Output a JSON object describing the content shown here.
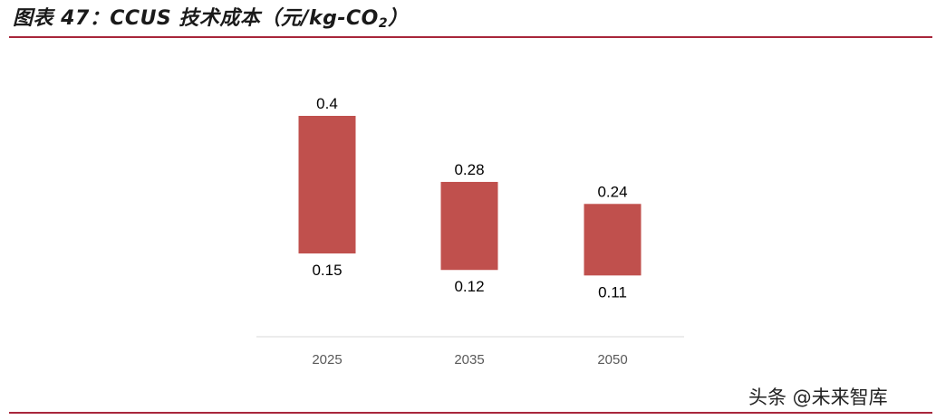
{
  "title": {
    "prefix": "图表 47：CCUS 技术成本（元/kg-CO",
    "subscript": "2",
    "suffix": "）"
  },
  "watermark": "头条 @未来智库",
  "colors": {
    "bar": "#c0504d",
    "rule": "#a8263b",
    "axis": "#d9d9d9",
    "tick_label": "#595959",
    "data_label": "#000000"
  },
  "chart_data": {
    "type": "bar",
    "subtype": "floating-range",
    "title": "CCUS 技术成本（元/kg-CO2）",
    "categories": [
      "2025",
      "2035",
      "2050"
    ],
    "series": [
      {
        "low": [
          0.15,
          0.12,
          0.11
        ],
        "high": [
          0.4,
          0.28,
          0.24
        ]
      }
    ],
    "data_labels": {
      "high": [
        "0.4",
        "0.28",
        "0.24"
      ],
      "low": [
        "0.15",
        "0.12",
        "0.11"
      ]
    },
    "xlabel": "",
    "ylabel": "",
    "ylim": [
      0,
      0.45
    ],
    "grid": false,
    "legend": "none"
  }
}
